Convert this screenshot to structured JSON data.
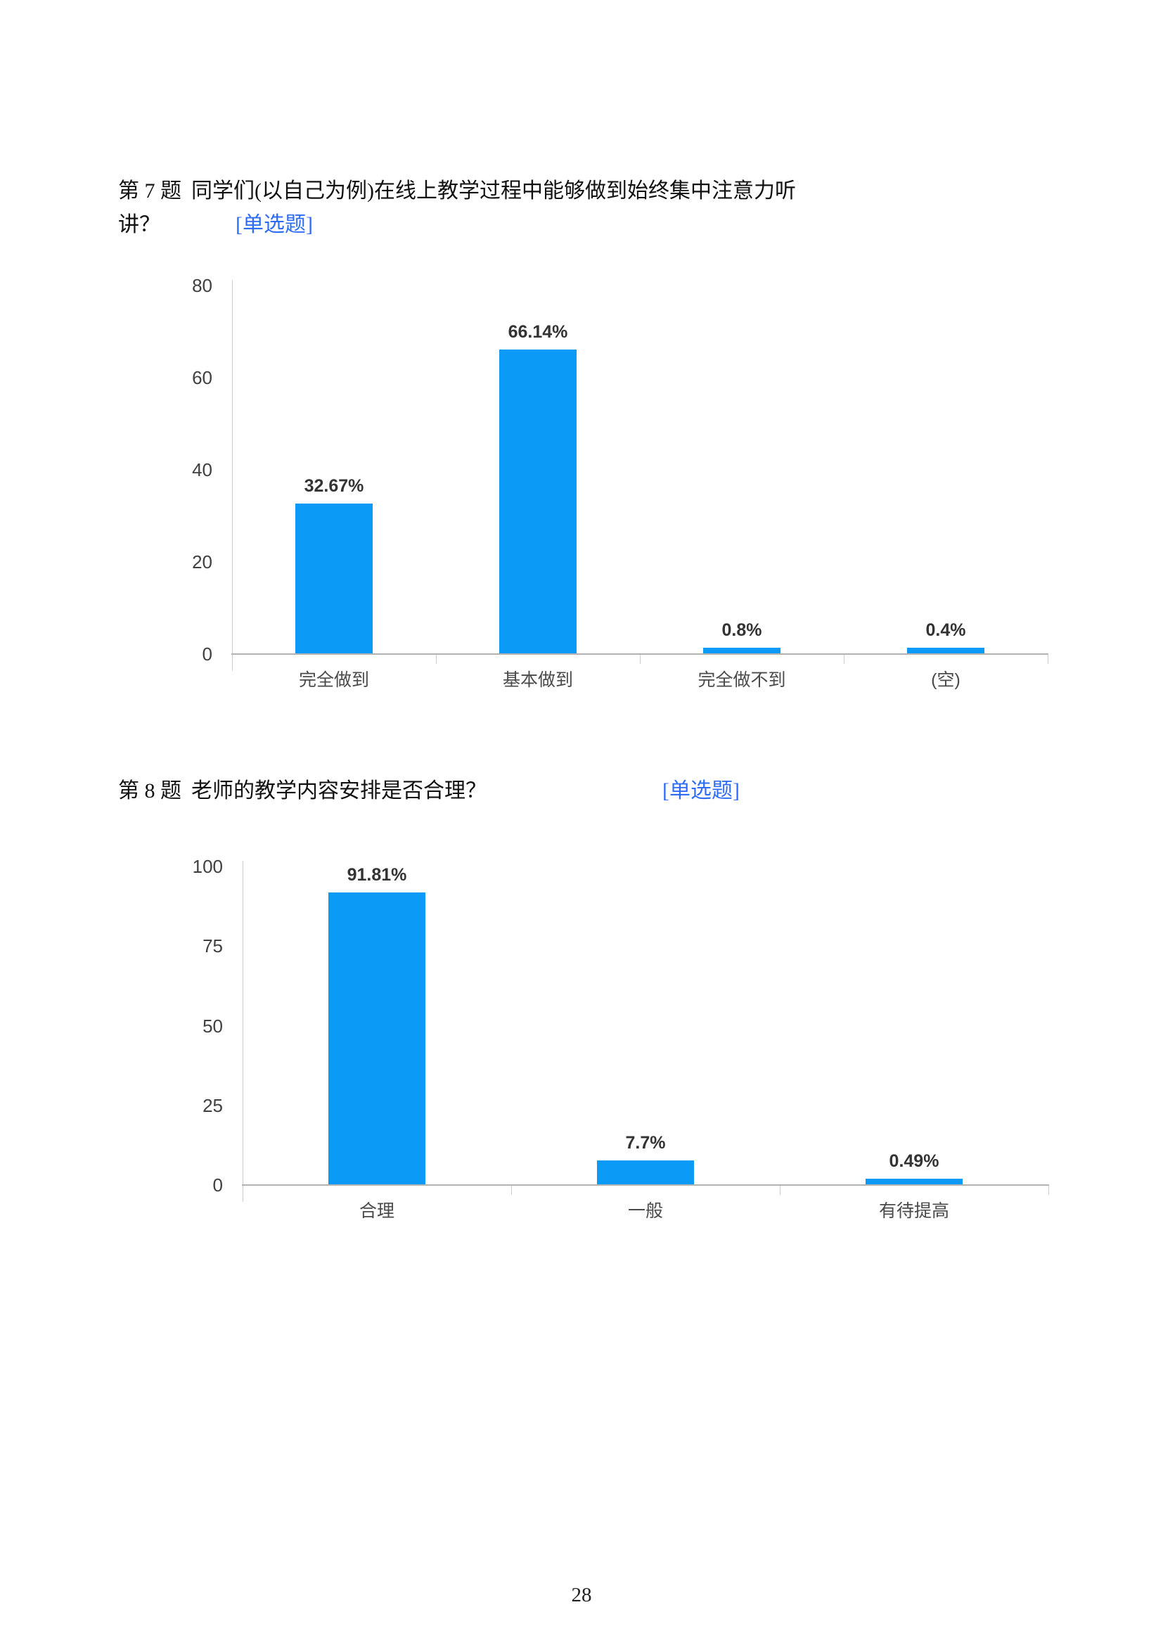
{
  "page": {
    "number": "28",
    "background": "#ffffff"
  },
  "colors": {
    "bar_blue": "#0b9af5",
    "tag_blue": "#2f6cf6",
    "axis_gray": "#cccccc",
    "baseline_gray": "#b3b3b3",
    "label_dark": "#333333"
  },
  "questions": [
    {
      "label": "第 7 题",
      "text_line1": "同学们(以自己为例)在线上教学过程中能够做到始终集中注意力听",
      "text_line2": "讲？",
      "tag": "[单选题]"
    },
    {
      "label": "第 8 题",
      "text": "老师的教学内容安排是否合理？",
      "tag": "[单选题]"
    }
  ],
  "chart_data": [
    {
      "type": "bar",
      "title": "第 7 题 同学们(以自己为例)在线上教学过程中能够做到始终集中注意力听讲？",
      "categories": [
        "完全做到",
        "基本做到",
        "完全做不到",
        "(空)"
      ],
      "values": [
        32.67,
        66.14,
        0.8,
        0.4
      ],
      "value_labels": [
        "32.67%",
        "66.14%",
        "0.8%",
        "0.4%"
      ],
      "xlabel": "",
      "ylabel": "",
      "ylim": [
        0,
        80
      ],
      "yticks": [
        0,
        20,
        40,
        60,
        80
      ],
      "grid": false,
      "legend": "none",
      "bar_color": "#0b9af5"
    },
    {
      "type": "bar",
      "title": "第 8 题 老师的教学内容安排是否合理？",
      "categories": [
        "合理",
        "一般",
        "有待提高"
      ],
      "values": [
        91.81,
        7.7,
        0.49
      ],
      "value_labels": [
        "91.81%",
        "7.7%",
        "0.49%"
      ],
      "xlabel": "",
      "ylabel": "",
      "ylim": [
        0,
        100
      ],
      "yticks": [
        0,
        25,
        50,
        75,
        100
      ],
      "grid": false,
      "legend": "none",
      "bar_color": "#0b9af5"
    }
  ]
}
